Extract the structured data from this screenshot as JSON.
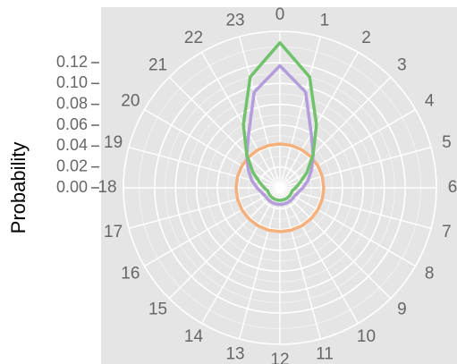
{
  "chart_data": {
    "type": "polar-line",
    "y_label": "Probability",
    "categories": [
      "0",
      "1",
      "2",
      "3",
      "4",
      "5",
      "6",
      "7",
      "8",
      "9",
      "10",
      "11",
      "12",
      "13",
      "14",
      "15",
      "16",
      "17",
      "18",
      "19",
      "20",
      "21",
      "22",
      "23"
    ],
    "series": [
      {
        "color": "#f5b07c",
        "values": [
          0.042,
          0.042,
          0.042,
          0.042,
          0.042,
          0.042,
          0.042,
          0.042,
          0.042,
          0.042,
          0.042,
          0.042,
          0.042,
          0.042,
          0.042,
          0.042,
          0.042,
          0.042,
          0.042,
          0.042,
          0.042,
          0.042,
          0.042,
          0.042
        ]
      },
      {
        "color": "#b39ddb",
        "values": [
          0.117,
          0.095,
          0.06,
          0.045,
          0.035,
          0.028,
          0.022,
          0.018,
          0.016,
          0.016,
          0.016,
          0.016,
          0.016,
          0.016,
          0.016,
          0.016,
          0.016,
          0.018,
          0.022,
          0.028,
          0.035,
          0.045,
          0.06,
          0.095
        ]
      },
      {
        "color": "#72c26d",
        "values": [
          0.139,
          0.11,
          0.07,
          0.045,
          0.03,
          0.02,
          0.015,
          0.012,
          0.012,
          0.012,
          0.012,
          0.012,
          0.012,
          0.012,
          0.012,
          0.012,
          0.012,
          0.012,
          0.015,
          0.02,
          0.03,
          0.045,
          0.07,
          0.11
        ]
      }
    ],
    "ylim": [
      0,
      0.15
    ],
    "yticks": [
      {
        "value": 0,
        "label": "0.00"
      },
      {
        "value": 0.02,
        "label": "0.02"
      },
      {
        "value": 0.04,
        "label": "0.04"
      },
      {
        "value": 0.06,
        "label": "0.06"
      },
      {
        "value": 0.08,
        "label": "0.08"
      },
      {
        "value": 0.1,
        "label": "0.10"
      },
      {
        "value": 0.12,
        "label": "0.12"
      }
    ],
    "grid": true
  }
}
